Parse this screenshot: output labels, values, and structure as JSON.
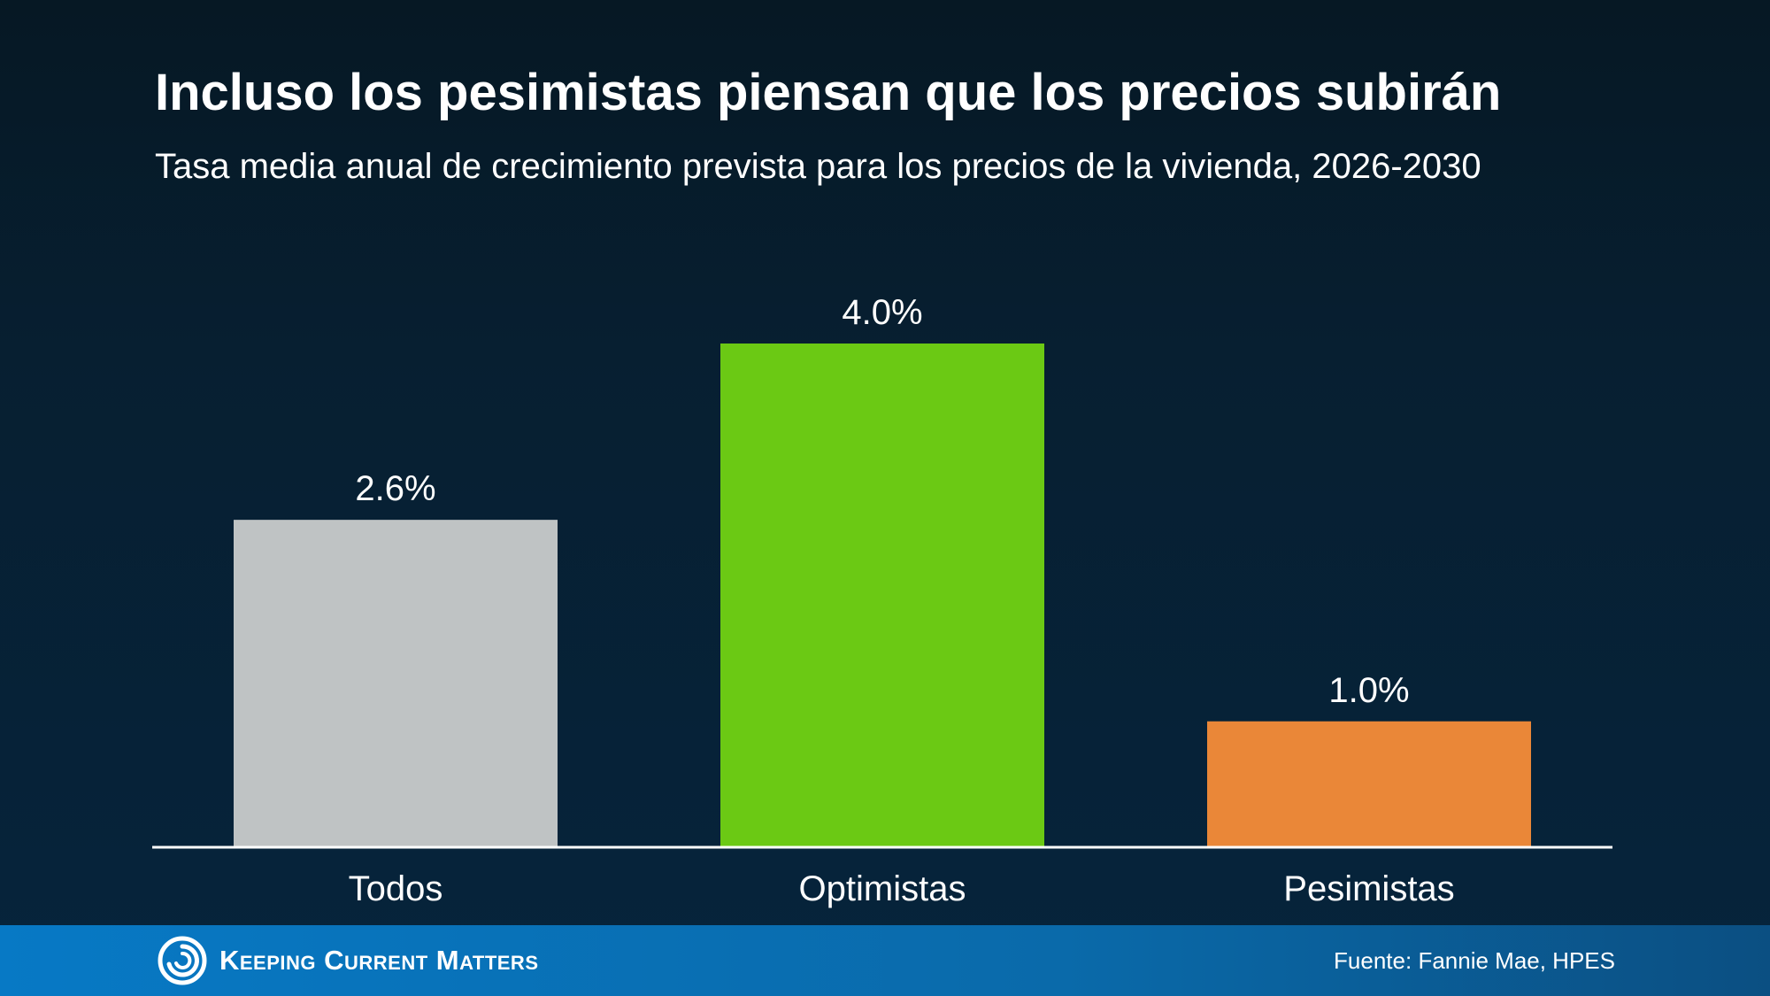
{
  "header": {
    "title": "Incluso los pesimistas piensan que los precios subirán",
    "subtitle": "Tasa media anual de crecimiento prevista para los precios de la vivienda, 2026-2030"
  },
  "chart_data": {
    "type": "bar",
    "title": "Incluso los pesimistas piensan que los precios subirán",
    "subtitle": "Tasa media anual de crecimiento prevista para los precios de la vivienda, 2026-2030",
    "categories": [
      "Todos",
      "Optimistas",
      "Pesimistas"
    ],
    "values": [
      2.6,
      4.0,
      1.0
    ],
    "value_labels": [
      "2.6%",
      "4.0%",
      "1.0%"
    ],
    "colors": [
      "#bfc3c4",
      "#6bc914",
      "#ea8738"
    ],
    "xlabel": "",
    "ylabel": "",
    "ylim": [
      0,
      4.0
    ],
    "grid": false,
    "legend": "none"
  },
  "footer": {
    "brand": "Keeping Current Matters",
    "logo_icon": "swirl-logo-icon",
    "source": "Fuente: Fannie Mae, HPES"
  }
}
